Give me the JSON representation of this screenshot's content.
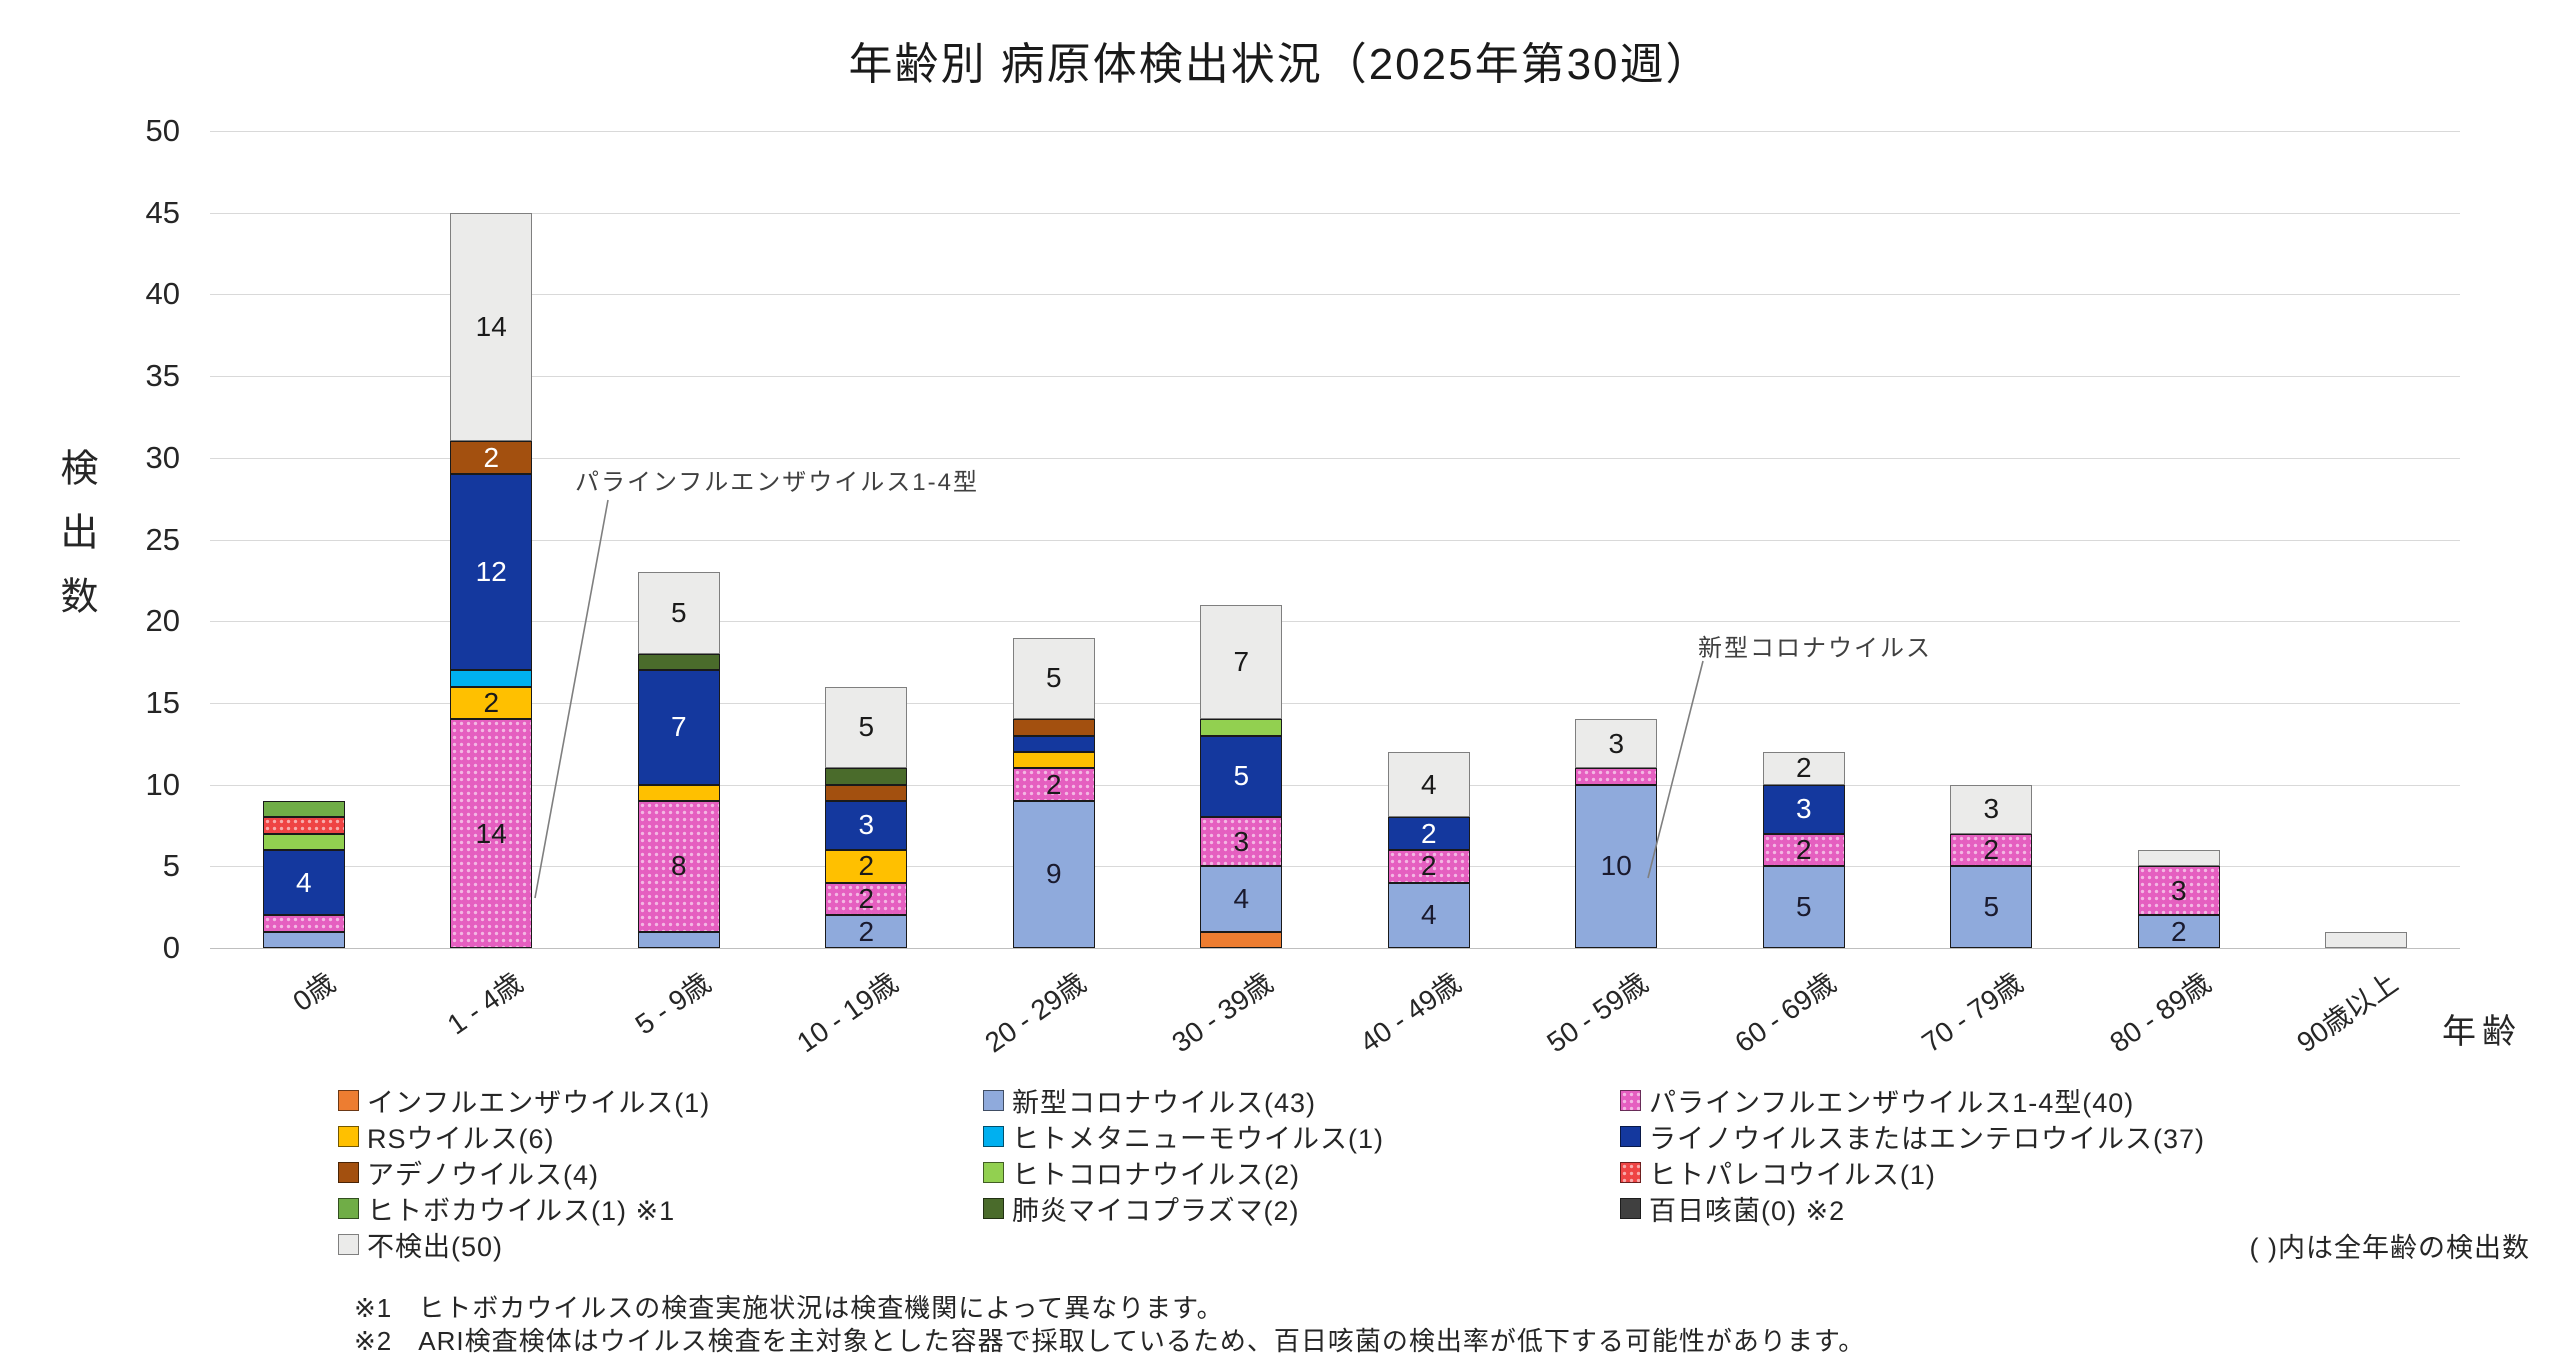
{
  "chart_data": {
    "type": "bar",
    "stacked": true,
    "title": "年齢別 病原体検出状況（2025年第30週）",
    "x_axis_title": "年齢",
    "y_axis_title": "検出数",
    "ylim": [
      0,
      50
    ],
    "yticks": [
      0,
      5,
      10,
      15,
      20,
      25,
      30,
      35,
      40,
      45,
      50
    ],
    "grid": true,
    "legend_position": "bottom",
    "data_label_rule": "segment values of 2 or more are shown",
    "categories": [
      "0歳",
      "1 - 4歳",
      "5 - 9歳",
      "10 - 19歳",
      "20 - 29歳",
      "30 - 39歳",
      "40 - 49歳",
      "50 - 59歳",
      "60 - 69歳",
      "70 - 79歳",
      "80 - 89歳",
      "90歳以上"
    ],
    "series": [
      {
        "name": "インフルエンザウイルス",
        "count": 1,
        "color": "#ED7D31",
        "pattern": "none",
        "label_color": "#1a1a1a",
        "values": [
          0,
          0,
          0,
          0,
          0,
          1,
          0,
          0,
          0,
          0,
          0,
          0
        ]
      },
      {
        "name": "新型コロナウイルス",
        "count": 43,
        "color": "#8FAADC",
        "pattern": "none",
        "label_color": "#1a1a2e",
        "values": [
          1,
          0,
          1,
          2,
          9,
          4,
          4,
          10,
          5,
          5,
          2,
          0
        ]
      },
      {
        "name": "パラインフルエンザウイルス1-4型",
        "count": 40,
        "color": "#E55FC0",
        "pattern": "dots",
        "label_color": "#1a1a1a",
        "values": [
          1,
          14,
          8,
          2,
          2,
          3,
          2,
          1,
          2,
          2,
          3,
          0
        ]
      },
      {
        "name": "RSウイルス",
        "count": 6,
        "color": "#FFC000",
        "pattern": "none",
        "label_color": "#1a1a1a",
        "values": [
          0,
          2,
          1,
          2,
          1,
          0,
          0,
          0,
          0,
          0,
          0,
          0
        ]
      },
      {
        "name": "ヒトメタニューモウイルス",
        "count": 1,
        "color": "#00B0F0",
        "pattern": "none",
        "label_color": "#1a1a1a",
        "values": [
          0,
          1,
          0,
          0,
          0,
          0,
          0,
          0,
          0,
          0,
          0,
          0
        ]
      },
      {
        "name": "ライノウイルスまたはエンテロウイルス",
        "count": 37,
        "color": "#14389E",
        "pattern": "none",
        "label_color": "#ffffff",
        "values": [
          4,
          12,
          7,
          3,
          1,
          5,
          2,
          0,
          3,
          0,
          0,
          0
        ]
      },
      {
        "name": "ヒトコロナウイルス",
        "count": 2,
        "color": "#92D050",
        "pattern": "none",
        "label_color": "#1a1a1a",
        "values": [
          1,
          0,
          0,
          0,
          0,
          1,
          0,
          0,
          0,
          0,
          0,
          0
        ]
      },
      {
        "name": "ヒトパレコウイルス",
        "count": 1,
        "color": "#EF4444",
        "pattern": "dots",
        "label_color": "#1a1a1a",
        "values": [
          1,
          0,
          0,
          0,
          0,
          0,
          0,
          0,
          0,
          0,
          0,
          0
        ]
      },
      {
        "name": "アデノウイルス",
        "count": 4,
        "color": "#A3500F",
        "pattern": "none",
        "label_color": "#ffffff",
        "values": [
          0,
          2,
          0,
          1,
          1,
          0,
          0,
          0,
          0,
          0,
          0,
          0
        ]
      },
      {
        "name": "ヒトボカウイルス",
        "count": 1,
        "color": "#70AD47",
        "pattern": "none",
        "label_color": "#1a1a1a",
        "note_mark": "※1",
        "values": [
          1,
          0,
          0,
          0,
          0,
          0,
          0,
          0,
          0,
          0,
          0,
          0
        ]
      },
      {
        "name": "肺炎マイコプラズマ",
        "count": 2,
        "color": "#4A6B2B",
        "pattern": "none",
        "label_color": "#ffffff",
        "values": [
          0,
          0,
          1,
          1,
          0,
          0,
          0,
          0,
          0,
          0,
          0,
          0
        ]
      },
      {
        "name": "百日咳菌",
        "count": 0,
        "color": "#404040",
        "pattern": "none",
        "label_color": "#ffffff",
        "note_mark": "※2",
        "values": [
          0,
          0,
          0,
          0,
          0,
          0,
          0,
          0,
          0,
          0,
          0,
          0
        ]
      },
      {
        "name": "不検出",
        "count": 50,
        "color": "#EBEBEA",
        "pattern": "none",
        "label_color": "#1a1a1a",
        "border": "#7F7F7F",
        "values": [
          0,
          14,
          5,
          5,
          5,
          7,
          4,
          3,
          2,
          3,
          1,
          1
        ]
      }
    ],
    "annotations": [
      {
        "text": "パラインフルエンザウイルス1-4型",
        "target_series": "パラインフルエンザウイルス1-4型",
        "target_category": "1 - 4歳"
      },
      {
        "text": "新型コロナウイルス",
        "target_series": "新型コロナウイルス",
        "target_category": "50 - 59歳"
      }
    ]
  },
  "legend": {
    "columns": [
      [
        "インフルエンザウイルス",
        "RSウイルス",
        "アデノウイルス",
        "ヒトボカウイルス",
        "不検出"
      ],
      [
        "新型コロナウイルス",
        "ヒトメタニューモウイルス",
        "ヒトコロナウイルス",
        "肺炎マイコプラズマ"
      ],
      [
        "パラインフルエンザウイルス1-4型",
        "ライノウイルスまたはエンテロウイルス",
        "ヒトパレコウイルス",
        "百日咳菌"
      ]
    ]
  },
  "notes": {
    "paren_note": "( )内は全年齢の検出数",
    "footnotes": [
      {
        "mark": "※1",
        "text": "ヒトボカウイルスの検査実施状況は検査機関によって異なります。"
      },
      {
        "mark": "※2",
        "text": "ARI検査検体はウイルス検査を主対象とした容器で採取しているため、百日咳菌の検出率が低下する可能性があります。"
      }
    ]
  }
}
